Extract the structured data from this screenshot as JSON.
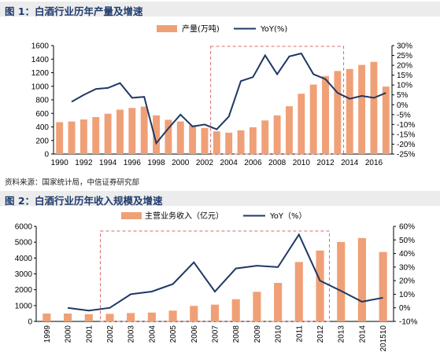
{
  "titles": {
    "chart1": "图 1：白酒行业历年产量及增速",
    "chart2": "图 2：白酒行业历年收入规模及增速"
  },
  "source_note": "资料来源：国家统计局，中信证券研究部",
  "colors": {
    "bar": "#f0a077",
    "line": "#1f3864",
    "box": "#e06666"
  },
  "chart_data": [
    {
      "type": "bar",
      "title": "图 1：白酒行业历年产量及增速",
      "x": [
        1990,
        1991,
        1992,
        1993,
        1994,
        1995,
        1996,
        1997,
        1998,
        1999,
        2000,
        2001,
        2002,
        2003,
        2004,
        2005,
        2006,
        2007,
        2008,
        2009,
        2010,
        2011,
        2012,
        2013,
        2014,
        2015,
        2016,
        2017
      ],
      "xtick_labels": [
        "1990",
        "1992",
        "1994",
        "1996",
        "1998",
        "2000",
        "2002",
        "2004",
        "2006",
        "2008",
        "2010",
        "2012",
        "2014",
        "2016"
      ],
      "series": [
        {
          "name": "产量(万吨)",
          "type": "bar",
          "axis": "left",
          "values": [
            470,
            480,
            510,
            545,
            595,
            655,
            680,
            700,
            570,
            505,
            480,
            425,
            385,
            335,
            315,
            350,
            395,
            495,
            570,
            705,
            890,
            1025,
            1150,
            1225,
            1255,
            1315,
            1360,
            995
          ]
        },
        {
          "name": "YoY(%)",
          "type": "line",
          "axis": "right",
          "values": [
            null,
            1.5,
            5,
            8,
            8.5,
            11,
            3.5,
            4,
            -19.5,
            -12,
            -5,
            -11,
            -10,
            -12.5,
            -6,
            12,
            14,
            25,
            15.5,
            24.5,
            26,
            15.5,
            13,
            6,
            3,
            4.5,
            3.5,
            6
          ]
        }
      ],
      "ylim_left": [
        0,
        1600
      ],
      "yticks_left": [
        0,
        200,
        400,
        600,
        800,
        1000,
        1200,
        1400,
        1600
      ],
      "ylim_right": [
        -25,
        30
      ],
      "yticks_right": [
        "-25%",
        "-20%",
        "-15%",
        "-10%",
        "-5%",
        "0%",
        "5%",
        "10%",
        "15%",
        "20%",
        "25%",
        "30%"
      ],
      "highlight_box": {
        "from": 2002.5,
        "to": 2013.5
      },
      "legend_placement": "top"
    },
    {
      "type": "bar",
      "title": "图 2：白酒行业历年收入规模及增速",
      "categories": [
        "1999",
        "2000",
        "2001",
        "2002",
        "2003",
        "2004",
        "2005",
        "2006",
        "2007",
        "2008",
        "2009",
        "2010",
        "2011",
        "2012",
        "2013",
        "2014",
        "201510"
      ],
      "series": [
        {
          "name": "主营业务收入（亿元）",
          "type": "bar",
          "axis": "left",
          "values": [
            500,
            500,
            460,
            480,
            530,
            560,
            680,
            980,
            1060,
            1400,
            1870,
            2430,
            3750,
            4470,
            5010,
            5260,
            4380
          ]
        },
        {
          "name": "YoY（%）",
          "type": "line",
          "axis": "right",
          "values": [
            null,
            0,
            -2,
            0,
            10,
            12,
            17.5,
            33.5,
            12,
            29,
            31,
            30,
            54,
            20,
            12.5,
            4.5,
            7.5
          ]
        }
      ],
      "ylim_left": [
        0,
        6000
      ],
      "yticks_left": [
        0,
        1000,
        2000,
        3000,
        4000,
        5000,
        6000
      ],
      "ylim_right": [
        -10,
        60
      ],
      "yticks_right": [
        "-10%",
        "0%",
        "10%",
        "20%",
        "30%",
        "40%",
        "50%",
        "60%"
      ],
      "highlight_box": {
        "from": "2002",
        "to": "2012"
      },
      "legend_placement": "top"
    }
  ]
}
